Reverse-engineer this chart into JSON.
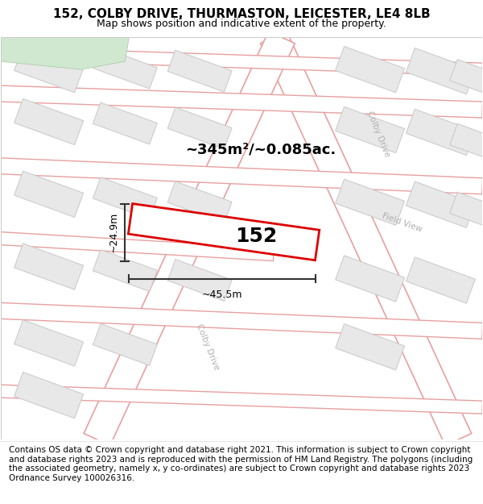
{
  "title": "152, COLBY DRIVE, THURMASTON, LEICESTER, LE4 8LB",
  "subtitle": "Map shows position and indicative extent of the property.",
  "footer": "Contains OS data © Crown copyright and database right 2021. This information is subject to Crown copyright and database rights 2023 and is reproduced with the permission of HM Land Registry. The polygons (including the associated geometry, namely x, y co-ordinates) are subject to Crown copyright and database rights 2023 Ordnance Survey 100026316.",
  "area_text": "~345m²/~0.085ac.",
  "dim_width": "~45.5m",
  "dim_height": "~24.9m",
  "property_label": "152",
  "bg_color": "#ffffff",
  "title_fontsize": 11,
  "subtitle_fontsize": 9,
  "footer_fontsize": 7.5,
  "road_color": "#e8a0a0",
  "building_color": "#e8e8e8",
  "building_edge": "#c8c8c8",
  "property_color": "#dd0000",
  "street_label_color": "#b0b0b0",
  "green_area": "#d0e8d0",
  "dim_line_color": "#333333"
}
